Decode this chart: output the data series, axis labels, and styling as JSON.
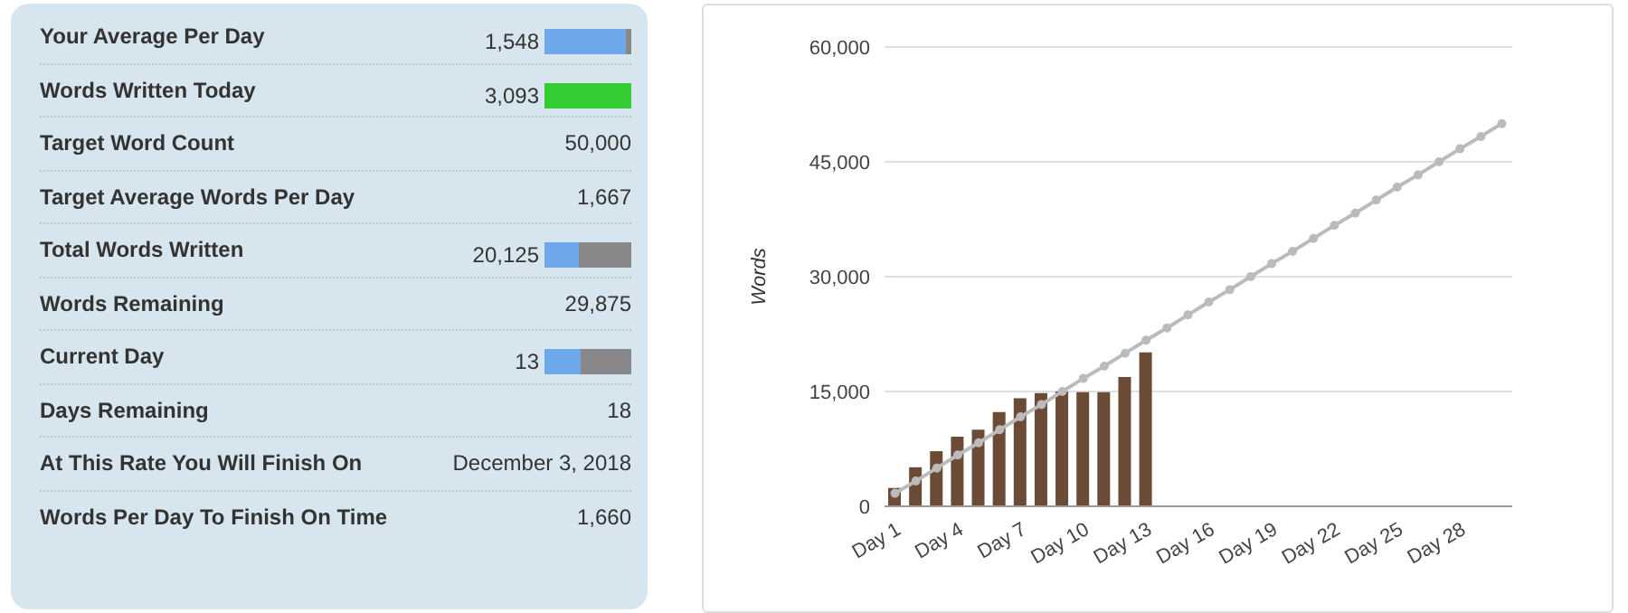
{
  "chart_data": [
    {
      "type": "other",
      "categories": [
        "Your Average Per Day",
        "Words Written Today",
        "Target Word Count",
        "Target Average Words Per Day",
        "Total Words Written",
        "Words Remaining",
        "Current Day",
        "Days Remaining",
        "At This Rate You Will Finish On",
        "Words Per Day To Finish On Time"
      ],
      "value_labels": [
        "1,548",
        "3,093",
        "50,000",
        "1,667",
        "20,125",
        "29,875",
        "13",
        "18",
        "December 3, 2018",
        "1,660"
      ]
    },
    {
      "type": "bar",
      "ylabel": "Words",
      "categories": [
        "Day 1",
        null,
        null,
        "Day 4",
        null,
        null,
        "Day 7",
        null,
        null,
        "Day 10",
        null,
        null,
        "Day 13",
        null,
        null,
        "Day 16",
        null,
        null,
        "Day 19",
        null,
        null,
        "Day 22",
        null,
        null,
        "Day 25",
        null,
        null,
        "Day 28",
        null,
        null
      ],
      "ylim": [
        0,
        60000
      ],
      "yticks": [
        {
          "value": 0,
          "label": "0"
        },
        {
          "value": 15000,
          "label": "15,000"
        },
        {
          "value": 30000,
          "label": "30,000"
        },
        {
          "value": 45000,
          "label": "45,000"
        },
        {
          "value": 60000,
          "label": "60,000"
        }
      ],
      "grid": "y",
      "legend": false,
      "series": [
        {
          "type": "bar",
          "color": "#6b4a36",
          "values": [
            2400,
            5100,
            7200,
            9100,
            10000,
            12300,
            14100,
            14800,
            15000,
            14900,
            14900,
            16900,
            20100,
            0,
            0,
            0,
            0,
            0,
            0,
            0,
            0,
            0,
            0,
            0,
            0,
            0,
            0,
            0,
            0,
            0
          ]
        },
        {
          "type": "line",
          "color": "#bbbbbb",
          "marker": "circle",
          "values": [
            1700,
            3300,
            5000,
            6700,
            8300,
            10000,
            11700,
            13300,
            15000,
            16700,
            18300,
            20000,
            21700,
            23300,
            25000,
            26700,
            28300,
            30000,
            31700,
            33300,
            35000,
            36700,
            38300,
            40000,
            41700,
            43300,
            45000,
            46700,
            48300,
            50000
          ]
        }
      ]
    }
  ]
}
